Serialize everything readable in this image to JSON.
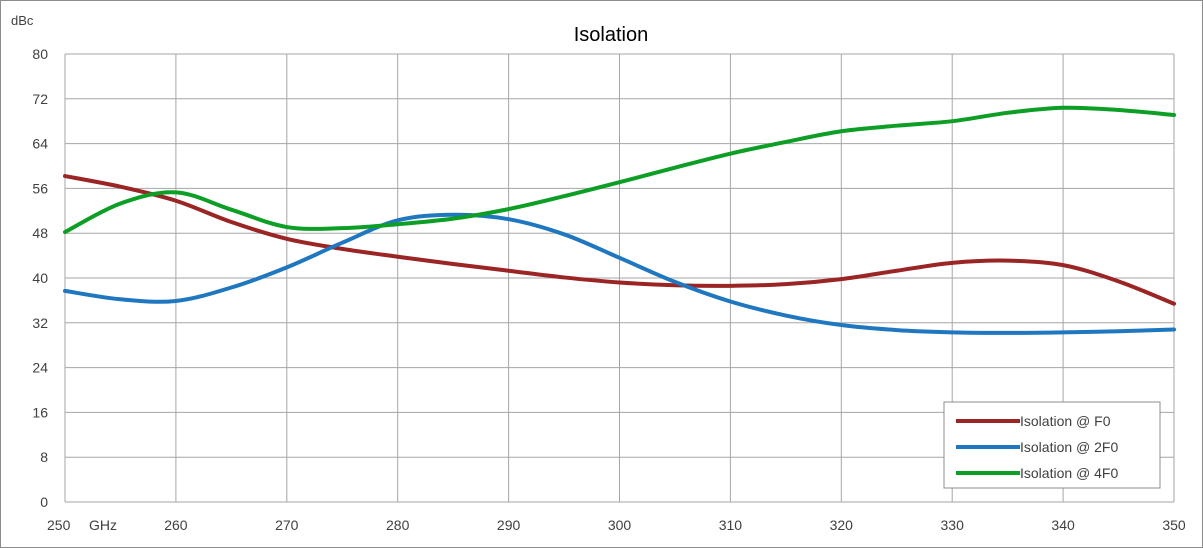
{
  "chart_data": {
    "type": "line",
    "title": "Isolation",
    "ylabel": "dBc",
    "xlabel": "",
    "x_unit": "GHz",
    "xlim": [
      250,
      350
    ],
    "ylim": [
      0,
      80
    ],
    "x_ticks": [
      250,
      260,
      270,
      280,
      290,
      300,
      310,
      320,
      330,
      340,
      350
    ],
    "y_ticks": [
      0,
      8,
      16,
      24,
      32,
      40,
      48,
      56,
      64,
      72,
      80
    ],
    "grid": true,
    "legend_position": "bottom-right",
    "series": [
      {
        "name": "Isolation @ F0",
        "color": "#9b2424",
        "x": [
          250,
          255,
          260,
          265,
          270,
          275,
          280,
          285,
          290,
          295,
          300,
          305,
          310,
          315,
          320,
          325,
          330,
          335,
          340,
          345,
          350
        ],
        "y": [
          58.2,
          56.3,
          53.8,
          50.0,
          47.0,
          45.2,
          43.8,
          42.5,
          41.3,
          40.1,
          39.2,
          38.7,
          38.6,
          38.9,
          39.8,
          41.3,
          42.7,
          43.1,
          42.3,
          39.4,
          35.4
        ]
      },
      {
        "name": "Isolation @ 2F0",
        "color": "#1f77c0",
        "x": [
          250,
          255,
          260,
          265,
          270,
          275,
          280,
          285,
          290,
          295,
          300,
          305,
          310,
          315,
          320,
          325,
          330,
          335,
          340,
          345,
          350
        ],
        "y": [
          37.7,
          36.2,
          35.9,
          38.3,
          41.9,
          46.3,
          50.3,
          51.3,
          50.5,
          47.8,
          43.6,
          39.3,
          35.8,
          33.3,
          31.6,
          30.7,
          30.3,
          30.2,
          30.3,
          30.5,
          30.8
        ]
      },
      {
        "name": "Isolation @ 4F0",
        "color": "#0d9e25",
        "x": [
          250,
          255,
          260,
          265,
          270,
          275,
          280,
          285,
          290,
          295,
          300,
          305,
          310,
          315,
          320,
          325,
          330,
          335,
          340,
          345,
          350
        ],
        "y": [
          48.2,
          53.3,
          55.3,
          52.2,
          49.1,
          48.9,
          49.6,
          50.6,
          52.3,
          54.6,
          57.1,
          59.7,
          62.2,
          64.3,
          66.2,
          67.2,
          68.0,
          69.5,
          70.4,
          70.0,
          69.1
        ]
      }
    ]
  }
}
